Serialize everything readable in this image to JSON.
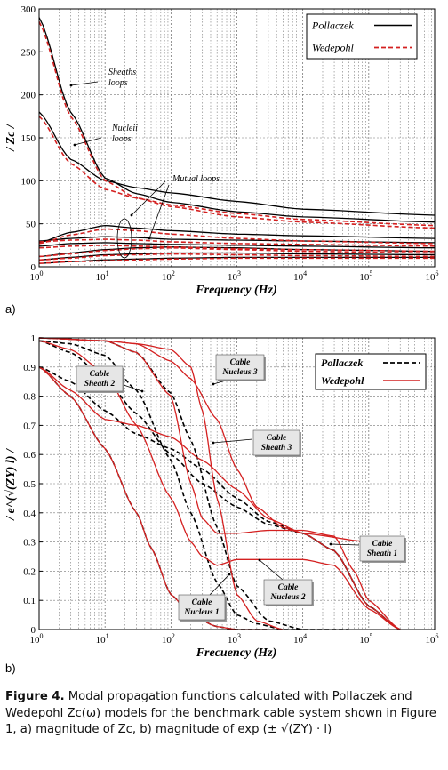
{
  "chart_data": [
    {
      "type": "line",
      "panel_label": "a)",
      "xlabel": "Frequency (Hz)",
      "ylabel": "/ Zc /",
      "xscale": "log",
      "xlim": [
        1,
        1000000
      ],
      "ylim": [
        0,
        300
      ],
      "yticks": [
        "0",
        "50",
        "100",
        "150",
        "200",
        "250",
        "300"
      ],
      "xtick_exponents": [
        "0",
        "1",
        "2",
        "3",
        "4",
        "5",
        "6"
      ],
      "grid": true,
      "legend": {
        "placement": "top-right",
        "entries": [
          "Pollaczek",
          "Wedepohl"
        ]
      },
      "annotations": [
        {
          "text": [
            "Sheaths",
            "loops"
          ]
        },
        {
          "text": [
            "Nucleii",
            "loops"
          ]
        },
        {
          "text": [
            "Mutual loops"
          ]
        }
      ],
      "series": [
        {
          "name": "Pollaczek",
          "color": "#000000",
          "style": "solid",
          "curves": [
            {
              "x": [
                1,
                3,
                10,
                30,
                100,
                1000,
                10000,
                1000000
              ],
              "y": [
                290,
                180,
                103,
                85,
                75,
                64,
                58,
                52
              ]
            },
            {
              "x": [
                1,
                3,
                10,
                30,
                100,
                1000,
                10000,
                1000000
              ],
              "y": [
                180,
                125,
                100,
                92,
                86,
                76,
                67,
                60
              ]
            },
            {
              "x": [
                1,
                3,
                10,
                30,
                100,
                1000,
                10000,
                1000000
              ],
              "y": [
                28,
                40,
                48,
                45,
                42,
                38,
                36,
                33
              ]
            },
            {
              "x": [
                1,
                3,
                10,
                30,
                100,
                1000,
                10000,
                1000000
              ],
              "y": [
                30,
                33,
                35,
                34,
                32,
                31,
                30,
                28
              ]
            },
            {
              "x": [
                1,
                3,
                10,
                30,
                100,
                1000,
                10000,
                1000000
              ],
              "y": [
                24,
                27,
                28,
                27,
                26,
                25,
                24,
                22
              ]
            },
            {
              "x": [
                1,
                3,
                10,
                30,
                100,
                1000,
                10000,
                1000000
              ],
              "y": [
                12,
                16,
                20,
                22,
                23,
                22,
                20,
                18
              ]
            },
            {
              "x": [
                1,
                3,
                10,
                30,
                100,
                1000,
                10000,
                1000000
              ],
              "y": [
                8,
                11,
                14,
                15,
                16,
                16,
                15,
                14
              ]
            },
            {
              "x": [
                1,
                3,
                10,
                30,
                100,
                1000,
                10000,
                1000000
              ],
              "y": [
                4,
                6,
                8,
                9,
                10,
                11,
                11,
                11
              ]
            }
          ]
        },
        {
          "name": "Wedepohl",
          "color": "#d42020",
          "style": "dashed",
          "curves": [
            {
              "x": [
                1,
                3,
                10,
                30,
                100,
                1000,
                10000,
                1000000
              ],
              "y": [
                285,
                175,
                100,
                80,
                70,
                58,
                52,
                45
              ]
            },
            {
              "x": [
                1,
                3,
                10,
                30,
                100,
                1000,
                10000,
                1000000
              ],
              "y": [
                175,
                120,
                90,
                80,
                72,
                62,
                55,
                48
              ]
            },
            {
              "x": [
                1,
                3,
                10,
                30,
                100,
                1000,
                10000,
                1000000
              ],
              "y": [
                27,
                37,
                44,
                42,
                38,
                33,
                30,
                27
              ]
            },
            {
              "x": [
                1,
                3,
                10,
                30,
                100,
                1000,
                10000,
                1000000
              ],
              "y": [
                29,
                31,
                32,
                31,
                29,
                27,
                26,
                24
              ]
            },
            {
              "x": [
                1,
                3,
                10,
                30,
                100,
                1000,
                10000,
                1000000
              ],
              "y": [
                22,
                24,
                25,
                24,
                23,
                21,
                20,
                18
              ]
            },
            {
              "x": [
                1,
                3,
                10,
                30,
                100,
                1000,
                10000,
                1000000
              ],
              "y": [
                12,
                15,
                19,
                21,
                22,
                20,
                18,
                16
              ]
            },
            {
              "x": [
                1,
                3,
                10,
                30,
                100,
                1000,
                10000,
                1000000
              ],
              "y": [
                8,
                10,
                13,
                14,
                15,
                14,
                13,
                12
              ]
            },
            {
              "x": [
                1,
                3,
                10,
                30,
                100,
                1000,
                10000,
                1000000
              ],
              "y": [
                4,
                6,
                7,
                8,
                9,
                10,
                10,
                10
              ]
            }
          ]
        }
      ]
    },
    {
      "type": "line",
      "panel_label": "b)",
      "xlabel": "Frecuency (Hz)",
      "ylabel": "/ e^(√(ZY) l) /",
      "xscale": "log",
      "xlim": [
        1,
        1000000
      ],
      "ylim": [
        0,
        1
      ],
      "yticks": [
        "0",
        "0.1",
        "0.2",
        "0.3",
        "0.4",
        "0.5",
        "0.6",
        "0.7",
        "0.8",
        "0.9",
        "1"
      ],
      "xtick_exponents": [
        "0",
        "1",
        "2",
        "3",
        "4",
        "5",
        "6"
      ],
      "grid": true,
      "legend": {
        "placement": "top-right",
        "entries": [
          "Pollaczek",
          "Wedepohl"
        ]
      },
      "annotations": [
        {
          "text": [
            "Cable",
            "Sheath 2"
          ]
        },
        {
          "text": [
            "Cable",
            "Nucleus 3"
          ]
        },
        {
          "text": [
            "Cable",
            "Sheath 3"
          ]
        },
        {
          "text": [
            "Cable",
            "Sheath 1"
          ]
        },
        {
          "text": [
            "Cable",
            "Nucleus 1"
          ]
        },
        {
          "text": [
            "Cable",
            "Nucleus 2"
          ]
        }
      ],
      "series": [
        {
          "name": "Pollaczek",
          "color": "#000000",
          "style": "dashed",
          "curves": [
            {
              "x": [
                1,
                3,
                10,
                30,
                50,
                100,
                200,
                500,
                1000,
                3000
              ],
              "y": [
                0.9,
                0.8,
                0.62,
                0.4,
                0.28,
                0.12,
                0.05,
                0.01,
                0,
                0
              ]
            },
            {
              "x": [
                1,
                3,
                10,
                30,
                100,
                200,
                500,
                1000,
                2000,
                5000,
                10000
              ],
              "y": [
                0.99,
                0.98,
                0.94,
                0.82,
                0.58,
                0.4,
                0.16,
                0.05,
                0.02,
                0,
                0
              ]
            },
            {
              "x": [
                1,
                10,
                30,
                100,
                200,
                500,
                1000,
                3000,
                10000,
                50000
              ],
              "y": [
                1,
                0.99,
                0.95,
                0.81,
                0.65,
                0.35,
                0.15,
                0.03,
                0,
                0
              ]
            },
            {
              "x": [
                1,
                3,
                10,
                30,
                100,
                300,
                1000,
                3000,
                10000,
                30000,
                100000,
                300000
              ],
              "y": [
                0.9,
                0.85,
                0.75,
                0.67,
                0.62,
                0.55,
                0.45,
                0.37,
                0.33,
                0.27,
                0.08,
                0
              ]
            },
            {
              "x": [
                1,
                3,
                10,
                30,
                100,
                300,
                1000,
                3000,
                10000,
                30000,
                100000,
                300000
              ],
              "y": [
                0.99,
                0.95,
                0.86,
                0.74,
                0.6,
                0.5,
                0.42,
                0.36,
                0.33,
                0.27,
                0.08,
                0
              ]
            }
          ]
        },
        {
          "name": "Wedepohl",
          "color": "#d42020",
          "style": "solid",
          "curves": [
            {
              "x": [
                1,
                3,
                10,
                30,
                50,
                100,
                200,
                500,
                1000,
                3000
              ],
              "y": [
                0.9,
                0.8,
                0.62,
                0.4,
                0.28,
                0.12,
                0.05,
                0.01,
                0,
                0
              ]
            },
            {
              "x": [
                1,
                3,
                10,
                30,
                100,
                200,
                300,
                500,
                1000,
                3000,
                10000,
                30000,
                100000,
                300000
              ],
              "y": [
                0.99,
                0.96,
                0.88,
                0.7,
                0.45,
                0.3,
                0.25,
                0.22,
                0.24,
                0.24,
                0.24,
                0.22,
                0.07,
                0
              ]
            },
            {
              "x": [
                1,
                10,
                30,
                100,
                200,
                300,
                500,
                1000,
                3000,
                10000,
                30000,
                60000,
                100000,
                300000
              ],
              "y": [
                1,
                0.99,
                0.95,
                0.8,
                0.5,
                0.38,
                0.33,
                0.33,
                0.34,
                0.34,
                0.32,
                0.2,
                0.1,
                0
              ]
            },
            {
              "x": [
                1,
                10,
                30,
                100,
                200,
                300,
                500,
                1000,
                2000,
                5000
              ],
              "y": [
                1,
                0.99,
                0.98,
                0.96,
                0.9,
                0.75,
                0.45,
                0.12,
                0.03,
                0
              ]
            },
            {
              "x": [
                1,
                3,
                10,
                30,
                100,
                300,
                1000,
                3000,
                10000,
                30000,
                100000,
                300000
              ],
              "y": [
                0.9,
                0.82,
                0.72,
                0.7,
                0.66,
                0.58,
                0.48,
                0.38,
                0.33,
                0.27,
                0.08,
                0
              ]
            },
            {
              "x": [
                1,
                10,
                30,
                100,
                200,
                500,
                1000,
                2000,
                5000,
                10000,
                100000
              ],
              "y": [
                1,
                0.99,
                0.98,
                0.92,
                0.86,
                0.72,
                0.55,
                0.42,
                0.35,
                0.33,
                0.3
              ]
            }
          ]
        }
      ]
    }
  ],
  "caption": {
    "figure": "Figure 4.",
    "text": "Modal propagation functions calculated with Pollaczek and Wedepohl Zc(ω) models for the benchmark cable system shown in Figure 1, a) magnitude of Zc, b) magnitude of exp (± √(ZY) · l)"
  }
}
